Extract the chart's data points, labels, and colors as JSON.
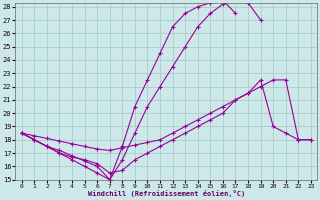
{
  "xlabel": "Windchill (Refroidissement éolien,°C)",
  "bg_color": "#cce8e8",
  "grid_color": "#aacccc",
  "line_color": "#990099",
  "xlim": [
    0,
    23
  ],
  "ylim": [
    15,
    28
  ],
  "xticks": [
    0,
    1,
    2,
    3,
    4,
    5,
    6,
    7,
    8,
    9,
    10,
    11,
    12,
    13,
    14,
    15,
    16,
    17,
    18,
    19,
    20,
    21,
    22,
    23
  ],
  "yticks": [
    15,
    16,
    17,
    18,
    19,
    20,
    21,
    22,
    23,
    24,
    25,
    26,
    27,
    28
  ],
  "lines": [
    {
      "x": [
        0,
        1,
        2,
        3,
        4,
        5,
        6,
        7,
        8,
        9,
        10,
        11,
        12,
        13,
        14,
        15,
        16,
        17
      ],
      "y": [
        18.5,
        18.0,
        17.5,
        17.2,
        16.8,
        16.4,
        16.0,
        15.0,
        17.5,
        20.5,
        22.5,
        24.5,
        26.5,
        27.5,
        28.0,
        28.3,
        28.5,
        27.5
      ]
    },
    {
      "x": [
        0,
        1,
        2,
        3,
        4,
        5,
        6,
        7,
        8,
        9,
        10,
        11,
        12,
        13,
        14,
        15,
        16,
        17,
        18,
        19
      ],
      "y": [
        18.5,
        18.0,
        17.5,
        17.0,
        16.5,
        16.0,
        15.5,
        15.0,
        16.5,
        18.5,
        20.5,
        22.0,
        23.5,
        25.0,
        26.5,
        27.5,
        28.2,
        28.5,
        28.3,
        27.0
      ]
    },
    {
      "x": [
        0,
        1,
        2,
        3,
        4,
        5,
        6,
        7,
        8,
        9,
        10,
        11,
        12,
        13,
        14,
        15,
        16,
        17,
        18,
        19,
        20,
        21,
        22,
        23
      ],
      "y": [
        18.5,
        18.3,
        18.1,
        17.9,
        17.7,
        17.5,
        17.3,
        17.2,
        17.4,
        17.6,
        17.8,
        18.0,
        18.5,
        19.0,
        19.5,
        20.0,
        20.5,
        21.0,
        21.5,
        22.0,
        22.5,
        22.5,
        18.0,
        18.0
      ]
    },
    {
      "x": [
        0,
        1,
        2,
        3,
        4,
        5,
        6,
        7,
        8,
        9,
        10,
        11,
        12,
        13,
        14,
        15,
        16,
        17,
        18,
        19,
        20,
        21,
        22,
        23
      ],
      "y": [
        18.5,
        18.0,
        17.5,
        17.0,
        16.7,
        16.5,
        16.2,
        15.5,
        15.7,
        16.5,
        17.0,
        17.5,
        18.0,
        18.5,
        19.0,
        19.5,
        20.0,
        21.0,
        21.5,
        22.5,
        19.0,
        18.5,
        18.0,
        18.0
      ]
    }
  ]
}
